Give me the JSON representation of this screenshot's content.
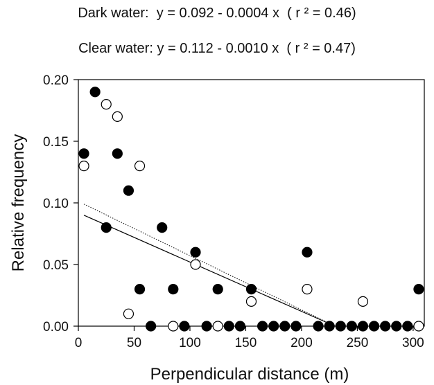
{
  "equations": {
    "dark": "Dark water:  y = 0.092 - 0.0004 x  ( r ² = 0.46)",
    "clear": "Clear water: y = 0.112 - 0.0010 x  ( r ² = 0.47)"
  },
  "chart_data": {
    "type": "scatter",
    "xlabel": "Perpendicular distance (m)",
    "ylabel": "Relative frequency",
    "xlim": [
      0,
      310
    ],
    "ylim": [
      0,
      0.2
    ],
    "x_ticks": [
      0,
      50,
      100,
      150,
      200,
      250,
      300
    ],
    "y_ticks": [
      0.0,
      0.05,
      0.1,
      0.15,
      0.2
    ],
    "y_tick_labels": [
      "0.00",
      "0.05",
      "0.10",
      "0.15",
      "0.20"
    ],
    "grid": false,
    "series": [
      {
        "marker": "filled-circle",
        "color": "#000000",
        "points": [
          [
            5,
            0.14
          ],
          [
            15,
            0.19
          ],
          [
            25,
            0.08
          ],
          [
            35,
            0.14
          ],
          [
            45,
            0.11
          ],
          [
            55,
            0.03
          ],
          [
            65,
            0.0
          ],
          [
            75,
            0.08
          ],
          [
            85,
            0.03
          ],
          [
            95,
            0.0
          ],
          [
            105,
            0.06
          ],
          [
            115,
            0.0
          ],
          [
            125,
            0.03
          ],
          [
            135,
            0.0
          ],
          [
            145,
            0.0
          ],
          [
            155,
            0.03
          ],
          [
            165,
            0.0
          ],
          [
            175,
            0.0
          ],
          [
            185,
            0.0
          ],
          [
            195,
            0.0
          ],
          [
            205,
            0.06
          ],
          [
            215,
            0.0
          ],
          [
            225,
            0.0
          ],
          [
            235,
            0.0
          ],
          [
            245,
            0.0
          ],
          [
            255,
            0.0
          ],
          [
            265,
            0.0
          ],
          [
            275,
            0.0
          ],
          [
            285,
            0.0
          ],
          [
            295,
            0.0
          ],
          [
            305,
            0.03
          ]
        ]
      },
      {
        "marker": "open-circle",
        "color": "#000000",
        "points": [
          [
            5,
            0.13
          ],
          [
            25,
            0.18
          ],
          [
            35,
            0.17
          ],
          [
            45,
            0.01
          ],
          [
            55,
            0.13
          ],
          [
            85,
            0.0
          ],
          [
            105,
            0.05
          ],
          [
            125,
            0.0
          ],
          [
            155,
            0.02
          ],
          [
            205,
            0.03
          ],
          [
            255,
            0.02
          ],
          [
            305,
            0.0
          ]
        ]
      }
    ],
    "fit_lines": [
      {
        "style": "solid",
        "x": [
          5,
          230
        ],
        "y": [
          0.09,
          0.0
        ]
      },
      {
        "style": "dotted",
        "x": [
          5,
          230
        ],
        "y": [
          0.099,
          0.0
        ]
      }
    ]
  }
}
